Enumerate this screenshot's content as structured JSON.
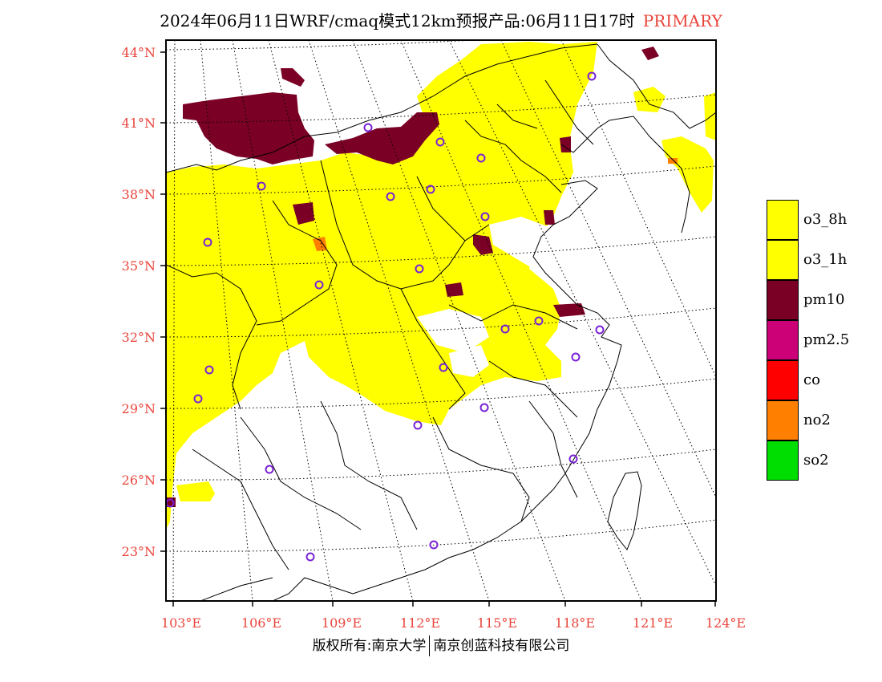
{
  "title": {
    "main": "2024年06月11日WRF/cmaq模式12km预报产品:06月11日17时",
    "tag": "PRIMARY"
  },
  "lon_labels": [
    "103°E",
    "106°E",
    "109°E",
    "112°E",
    "115°E",
    "118°E",
    "121°E",
    "124°E"
  ],
  "lat_labels": [
    "44°N",
    "41°N",
    "38°N",
    "35°N",
    "32°N",
    "29°N",
    "26°N",
    "23°N"
  ],
  "legend": [
    {
      "label": "o3_8h",
      "color": "#ffff00"
    },
    {
      "label": "o3_1h",
      "color": "#ffff00"
    },
    {
      "label": "pm10",
      "color": "#7a0026"
    },
    {
      "label": "pm2.5",
      "color": "#cc0077"
    },
    {
      "label": "co",
      "color": "#ff0000"
    },
    {
      "label": "no2",
      "color": "#ff8000"
    },
    {
      "label": "so2",
      "color": "#00dd00"
    }
  ],
  "footer": {
    "left": "版权所有:南京大学",
    "right": "南京创蓝科技有限公司"
  }
}
